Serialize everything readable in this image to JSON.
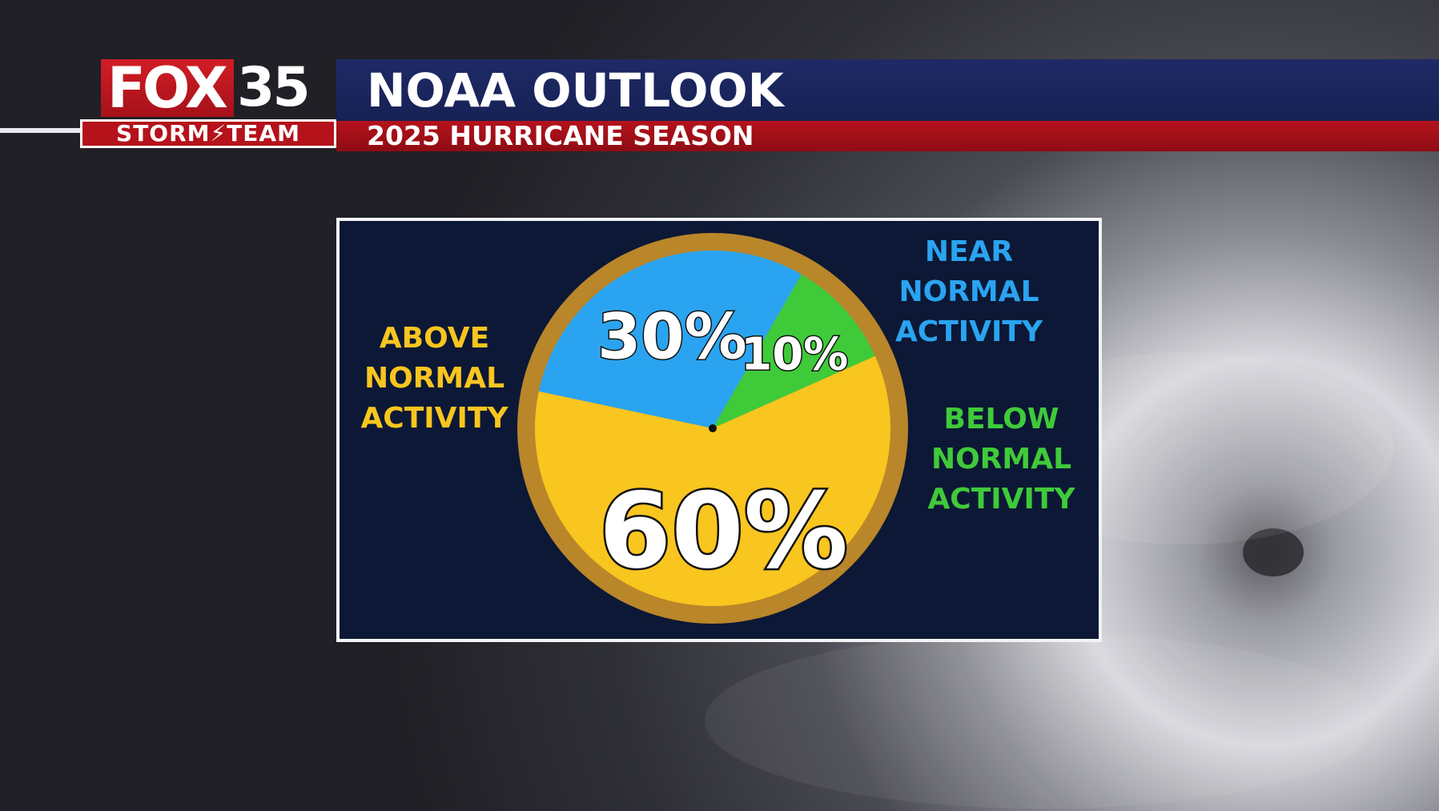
{
  "broadcast": {
    "logo_fox": "FOX",
    "logo_number": "35",
    "logo_team": "STORM⚡TEAM",
    "title": "NOAA OUTLOOK",
    "subtitle": "2025 HURRICANE SEASON"
  },
  "colors": {
    "above": "#f9c51f",
    "near": "#2aa4f0",
    "below": "#3fca3a",
    "rim": "#b9862a",
    "panel": "#0c1835"
  },
  "chart_data": {
    "type": "pie",
    "title": "",
    "slices": [
      {
        "label": "ABOVE\nNORMAL\nACTIVITY",
        "value": 60,
        "value_label": "60%"
      },
      {
        "label": "NEAR\nNORMAL\nACTIVITY",
        "value": 30,
        "value_label": "30%"
      },
      {
        "label": "BELOW\nNORMAL\nACTIVITY",
        "value": 10,
        "value_label": "10%"
      }
    ]
  }
}
